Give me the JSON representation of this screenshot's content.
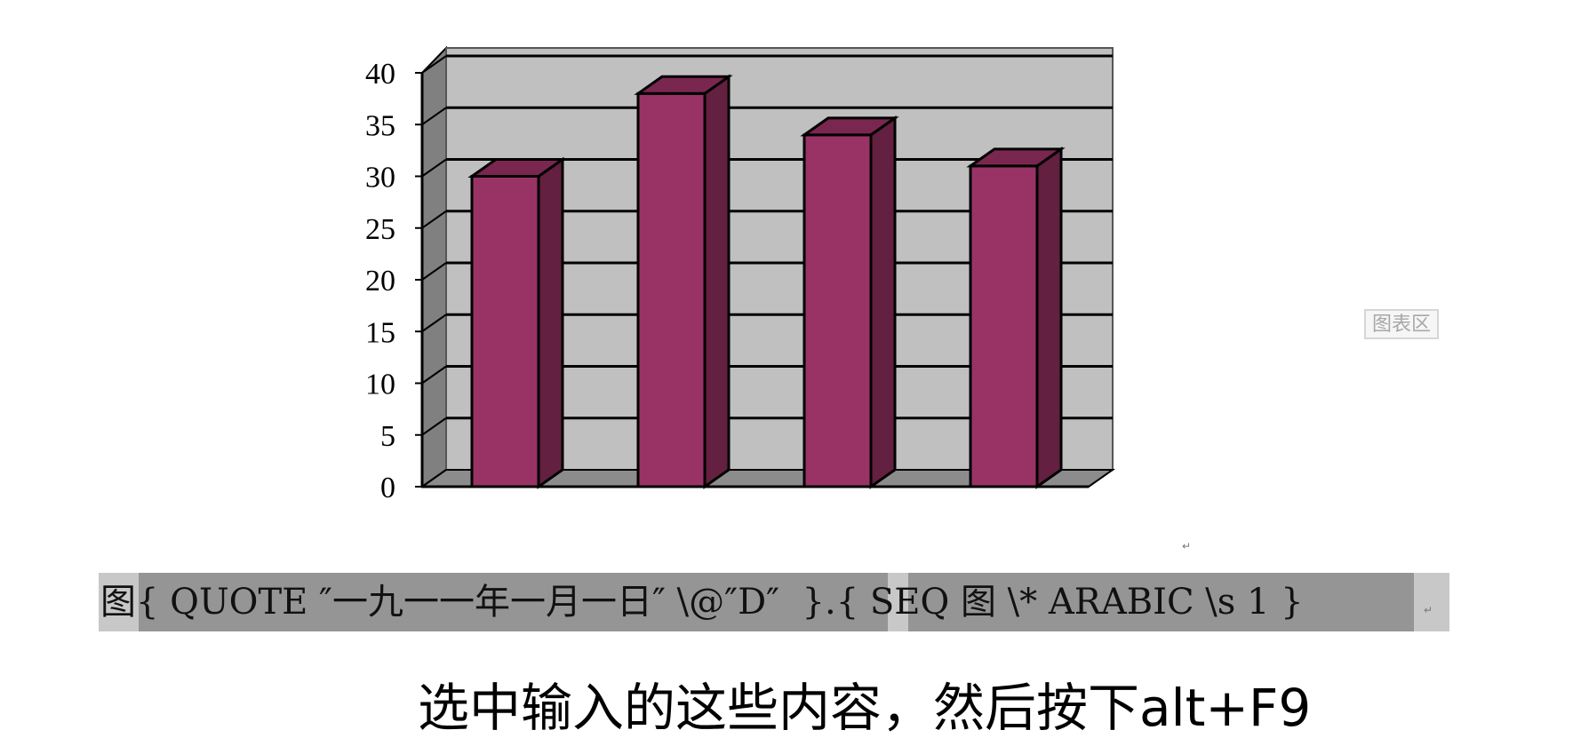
{
  "chart_data": {
    "type": "bar",
    "categories": [
      "",
      "",
      "",
      ""
    ],
    "values": [
      30,
      38,
      34,
      31
    ],
    "title": "",
    "xlabel": "",
    "ylabel": "",
    "ylim": [
      0,
      40
    ],
    "yticks": [
      "0",
      "5",
      "10",
      "15",
      "20",
      "25",
      "30",
      "35",
      "40"
    ],
    "grid": true,
    "legend": "none",
    "colors": {
      "bar_front": "#993366",
      "bar_side": "#632040",
      "bar_top": "#7a2750",
      "wall": "#c0c0c0",
      "left_wall": "#808080",
      "floor": "#8c8c8c",
      "gridline": "#000000"
    }
  },
  "chart_area_label": "图表区",
  "caption": {
    "prefix": "图",
    "field1": "{ QUOTE ″一九一一年一月一日″ \\@″D″  }",
    "separator": ".",
    "field2": "{ SEQ 图 \\* ARABIC \\s 1 }",
    "paragraph_mark": "↵"
  },
  "instruction": "选中输入的这些内容，然后按下alt+F9"
}
